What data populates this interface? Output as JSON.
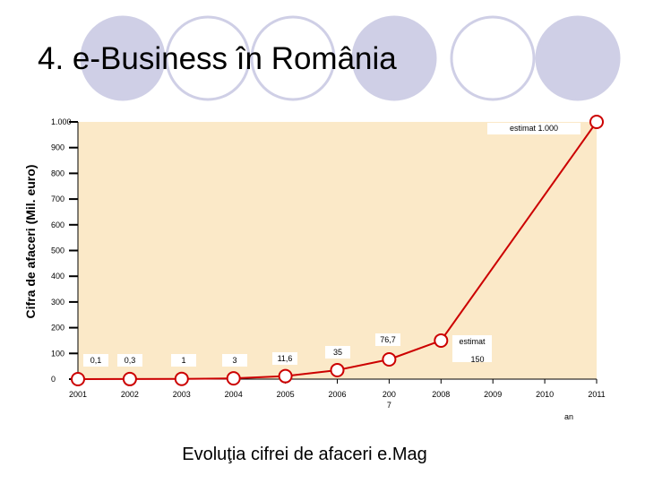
{
  "slide": {
    "title": "4. e-Business în România",
    "caption": "Evoluţia cifrei de afaceri e.Mag"
  },
  "decor": {
    "circle_fill": "#cfcfe6",
    "circle_stroke": "#cfcfe6"
  },
  "colors": {
    "plot_bg": "#fbe9c8",
    "line": "#cc0000",
    "marker_fill": "#ffffff",
    "marker_stroke": "#cc0000"
  },
  "chart_data": {
    "type": "line",
    "title": "",
    "ylabel": "Cifra de afaceri (Mil. euro)",
    "xlabel": "an",
    "ylim": [
      0,
      1000
    ],
    "y_ticks": [
      0,
      100,
      200,
      300,
      400,
      500,
      600,
      700,
      800,
      900,
      1000
    ],
    "y_tick_labels": [
      "0",
      "100",
      "200",
      "300",
      "400",
      "500",
      "600",
      "700",
      "800",
      "900",
      "1.000"
    ],
    "categories": [
      "2001",
      "2002",
      "2003",
      "2004",
      "2005",
      "2006",
      "2007",
      "2008",
      "2009",
      "2010",
      "2011"
    ],
    "category_labels": [
      "2001",
      "2002",
      "2003",
      "2004",
      "2005",
      "2006",
      "200\n7",
      "2008",
      "2009",
      "2010",
      "2011"
    ],
    "series": [
      {
        "name": "",
        "x": [
          "2001",
          "2002",
          "2003",
          "2004",
          "2005",
          "2006",
          "2007",
          "2008",
          "2011"
        ],
        "values": [
          0.1,
          0.3,
          1,
          3,
          11.6,
          35,
          76.7,
          150,
          1000
        ]
      }
    ],
    "data_labels": [
      "0,1",
      "0,3",
      "1",
      "3",
      "11,6",
      "35",
      "76,7",
      "estimat\n150",
      "estimat 1.000"
    ],
    "grid": false
  }
}
